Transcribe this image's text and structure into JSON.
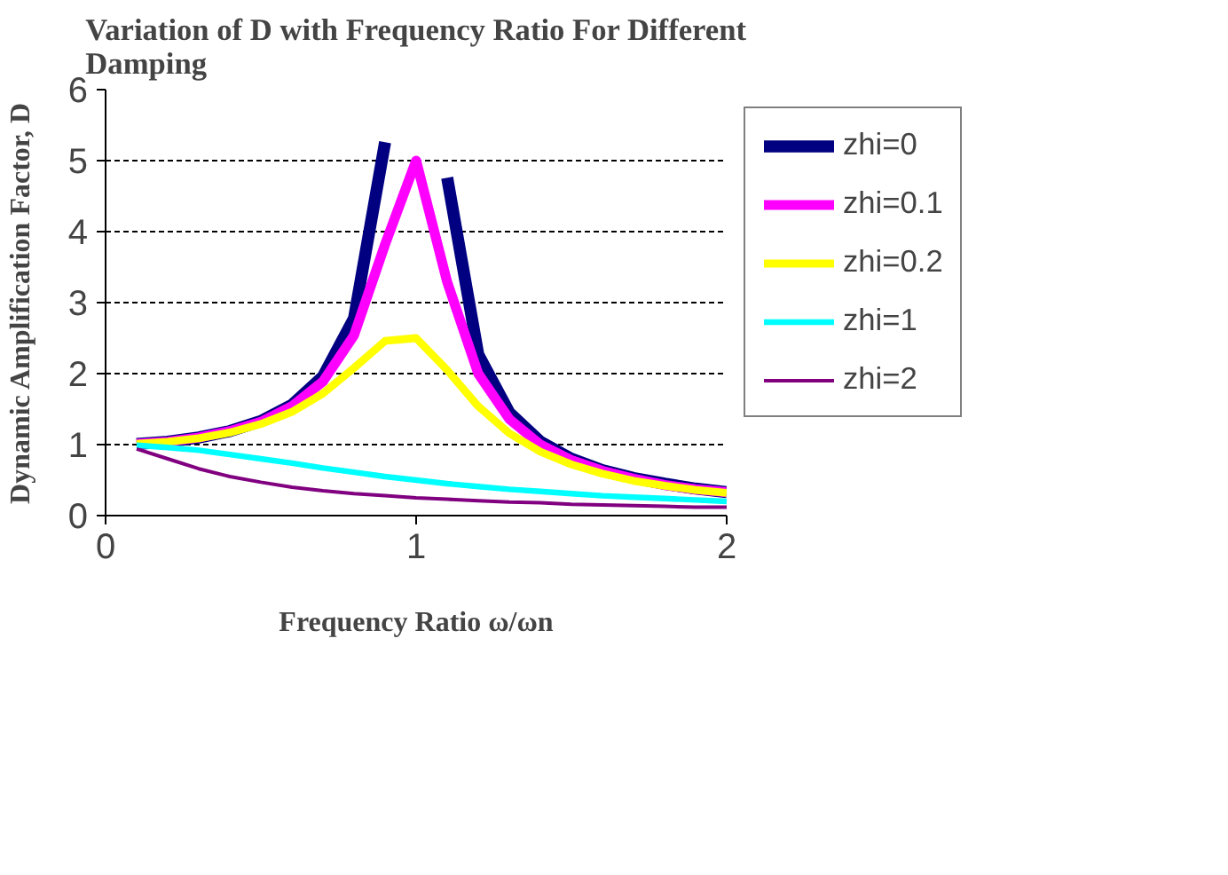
{
  "chart_data": {
    "type": "line",
    "title": "Variation of D with Frequency Ratio For Different Damping",
    "xlabel": "Frequency Ratio ω/ωn",
    "ylabel": "Dynamic Amplification Factor, D",
    "x": [
      0.1,
      0.2,
      0.3,
      0.4,
      0.5,
      0.6,
      0.7,
      0.8,
      0.9,
      1.0,
      1.1,
      1.2,
      1.3,
      1.4,
      1.5,
      1.6,
      1.7,
      1.8,
      1.9,
      2.0
    ],
    "series": [
      {
        "name": "zhi=0",
        "color": "#000080",
        "values": [
          1.01,
          1.04,
          1.1,
          1.19,
          1.33,
          1.56,
          1.96,
          2.78,
          5.26,
          null,
          4.76,
          2.27,
          1.45,
          1.04,
          0.8,
          0.64,
          0.53,
          0.45,
          0.38,
          0.33
        ]
      },
      {
        "name": "zhi=0.1",
        "color": "#ff00ff",
        "values": [
          1.01,
          1.04,
          1.1,
          1.19,
          1.32,
          1.54,
          1.89,
          2.54,
          3.82,
          5.0,
          3.29,
          2.0,
          1.36,
          1.0,
          0.78,
          0.63,
          0.52,
          0.43,
          0.37,
          0.33
        ]
      },
      {
        "name": "zhi=0.2",
        "color": "#ffff00",
        "values": [
          1.01,
          1.04,
          1.09,
          1.17,
          1.29,
          1.46,
          1.72,
          2.08,
          2.46,
          2.5,
          2.05,
          1.54,
          1.16,
          0.9,
          0.72,
          0.59,
          0.49,
          0.42,
          0.36,
          0.32
        ]
      },
      {
        "name": "zhi=1",
        "color": "#00ffff",
        "values": [
          0.99,
          0.96,
          0.92,
          0.86,
          0.8,
          0.74,
          0.67,
          0.61,
          0.55,
          0.5,
          0.45,
          0.41,
          0.37,
          0.34,
          0.31,
          0.28,
          0.26,
          0.24,
          0.22,
          0.2
        ]
      },
      {
        "name": "zhi=2",
        "color": "#800080",
        "values": [
          0.94,
          0.8,
          0.66,
          0.55,
          0.47,
          0.4,
          0.35,
          0.31,
          0.28,
          0.25,
          0.23,
          0.21,
          0.19,
          0.18,
          0.16,
          0.15,
          0.14,
          0.13,
          0.12,
          0.12
        ]
      }
    ],
    "xlim": [
      0,
      2
    ],
    "xticks": [
      0,
      1,
      2
    ],
    "ylim": [
      0,
      6
    ],
    "yticks": [
      0,
      1,
      2,
      3,
      4,
      5,
      6
    ],
    "grid": "y",
    "legend": "right",
    "marker": "none",
    "line_style": "solid"
  }
}
